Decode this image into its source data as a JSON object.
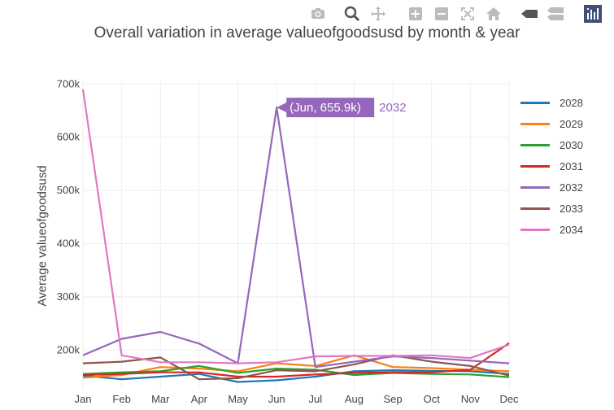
{
  "modebar": {
    "buttons": [
      "camera-icon",
      "zoom-icon",
      "pan-icon",
      "zoom-in-icon",
      "zoom-out-icon",
      "autoscale-icon",
      "home-icon",
      "spike-lines-icon",
      "compare-hover-icon",
      "plotly-logo-icon"
    ]
  },
  "chart_data": {
    "type": "line",
    "title": "Overall variation in average valueofgoodsusd by month & year",
    "xlabel": "",
    "ylabel": "Average valueofgoodsusd",
    "categories": [
      "Jan",
      "Feb",
      "Mar",
      "Apr",
      "May",
      "Jun",
      "Jul",
      "Aug",
      "Sep",
      "Oct",
      "Nov",
      "Dec"
    ],
    "yticks": [
      200000,
      300000,
      400000,
      500000,
      600000,
      700000
    ],
    "ytick_labels": [
      "200k",
      "300k",
      "400k",
      "500k",
      "600k",
      "700k"
    ],
    "ylim": [
      127000,
      705000
    ],
    "grid": true,
    "legend_position": "right",
    "series": [
      {
        "name": "2028",
        "color": "#1f77b4",
        "values": [
          152000,
          145000,
          150000,
          155000,
          140000,
          143000,
          150000,
          160000,
          162000,
          161000,
          160000,
          155000
        ]
      },
      {
        "name": "2029",
        "color": "#ff7f0e",
        "values": [
          148000,
          153000,
          168000,
          165000,
          160000,
          175000,
          170000,
          190000,
          168000,
          166000,
          163000,
          160000
        ]
      },
      {
        "name": "2030",
        "color": "#2ca02c",
        "values": [
          155000,
          158000,
          160000,
          170000,
          157000,
          165000,
          163000,
          153000,
          157000,
          155000,
          154000,
          149000
        ]
      },
      {
        "name": "2031",
        "color": "#d62728",
        "values": [
          153000,
          155000,
          158000,
          158000,
          150000,
          150000,
          154000,
          157000,
          158000,
          158000,
          163000,
          213000
        ]
      },
      {
        "name": "2032",
        "color": "#9467bd",
        "values": [
          190000,
          221000,
          234000,
          212000,
          175000,
          655900,
          168000,
          178000,
          188000,
          185000,
          180000,
          175000
        ]
      },
      {
        "name": "2033",
        "color": "#8c564b",
        "values": [
          175000,
          178000,
          186000,
          145000,
          147000,
          162000,
          160000,
          173000,
          190000,
          178000,
          170000,
          152000
        ]
      },
      {
        "name": "2034",
        "color": "#e377c2",
        "values": [
          690000,
          190000,
          177000,
          177000,
          175000,
          177000,
          188000,
          189000,
          189000,
          190000,
          185000,
          210000
        ]
      }
    ],
    "annotation": {
      "series": "2032",
      "category": "Jun",
      "value_text": "(Jun, 655.9k)",
      "series_label": "2032",
      "color": "#9467bd"
    }
  }
}
